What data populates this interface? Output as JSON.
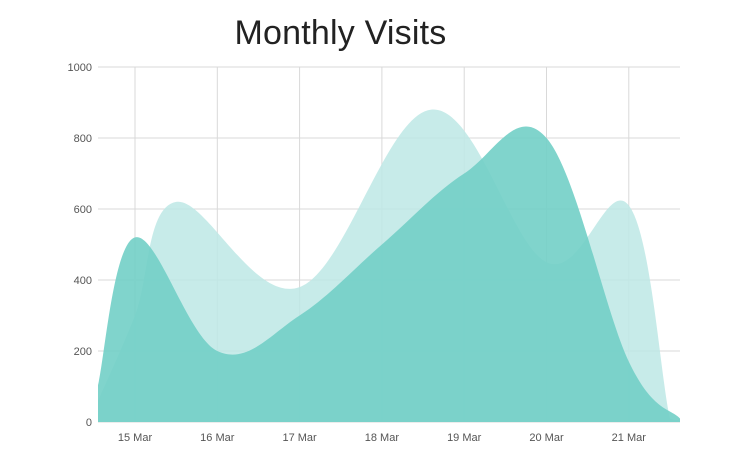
{
  "chart_data": {
    "type": "area",
    "title": "Monthly Visits",
    "categories": [
      "15 Mar",
      "16 Mar",
      "17 Mar",
      "18 Mar",
      "19 Mar",
      "20 Mar",
      "21 Mar"
    ],
    "ylim": [
      0,
      1000
    ],
    "yticks": [
      0,
      200,
      400,
      600,
      800,
      1000
    ],
    "grid": true,
    "legend": "none",
    "series": [
      {
        "color": "#bde8e5",
        "points": [
          {
            "x": "15 Mar",
            "y": 300
          },
          {
            "x": "15.5 Mar",
            "y": 620
          },
          {
            "x": "17 Mar",
            "y": 380
          },
          {
            "x": "18.6 Mar",
            "y": 880
          },
          {
            "x": "20 Mar",
            "y": 450
          },
          {
            "x": "21 Mar",
            "y": 610
          },
          {
            "x": "21.5 Mar",
            "y": 10
          }
        ],
        "note_values": [
          null,
          620,
          null,
          380,
          880,
          450,
          610
        ]
      },
      {
        "color": "#72cfc6",
        "points": [
          {
            "x": "15 Mar",
            "y": 520
          },
          {
            "x": "16 Mar",
            "y": 200
          },
          {
            "x": "17 Mar",
            "y": 300
          },
          {
            "x": "18 Mar",
            "y": 500
          },
          {
            "x": "19 Mar",
            "y": 700
          },
          {
            "x": "20 Mar",
            "y": 800
          },
          {
            "x": "21 Mar",
            "y": 170
          }
        ]
      }
    ]
  },
  "colors": {
    "series_back": "#bde8e5",
    "series_front": "#72cfc6",
    "grid": "#d9d9d9",
    "title": "#222222"
  }
}
